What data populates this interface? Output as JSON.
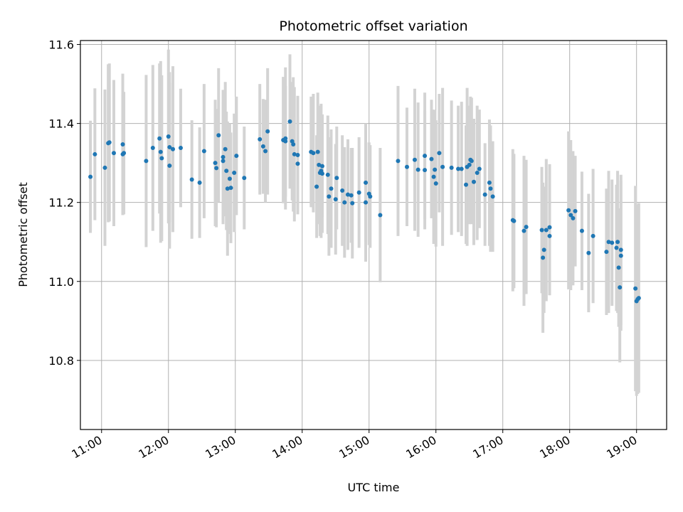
{
  "chart_data": {
    "type": "scatter",
    "title": "Photometric offset variation",
    "xlabel": "UTC time",
    "ylabel": "Photometric offset",
    "xlim": [
      "10:41",
      "19:27"
    ],
    "ylim": [
      10.625,
      11.61
    ],
    "x_ticks": [
      "11:00",
      "12:00",
      "13:00",
      "14:00",
      "15:00",
      "16:00",
      "17:00",
      "18:00",
      "19:00"
    ],
    "y_ticks": [
      10.8,
      11.0,
      11.2,
      11.4,
      11.6
    ],
    "grid": true,
    "colors": {
      "points": "#1f77b4",
      "errorbars": "#d3d3d3",
      "grid": "#b0b0b0"
    },
    "series": [
      {
        "points": [
          {
            "x": "10:50",
            "y": 11.265,
            "err": 0.142
          },
          {
            "x": "10:54",
            "y": 11.322,
            "err": 0.167
          },
          {
            "x": "11:03",
            "y": 11.288,
            "err": 0.198
          },
          {
            "x": "11:06",
            "y": 11.35,
            "err": 0.2
          },
          {
            "x": "11:07",
            "y": 11.352,
            "err": 0.2
          },
          {
            "x": "11:11",
            "y": 11.325,
            "err": 0.185
          },
          {
            "x": "11:19",
            "y": 11.347,
            "err": 0.179
          },
          {
            "x": "11:19",
            "y": 11.322,
            "err": 0.15
          },
          {
            "x": "11:20",
            "y": 11.325,
            "err": 0.155
          },
          {
            "x": "11:40",
            "y": 11.305,
            "err": 0.218
          },
          {
            "x": "11:46",
            "y": 11.338,
            "err": 0.21
          },
          {
            "x": "11:52",
            "y": 11.362,
            "err": 0.19
          },
          {
            "x": "11:53",
            "y": 11.328,
            "err": 0.23
          },
          {
            "x": "11:54",
            "y": 11.312,
            "err": 0.21
          },
          {
            "x": "12:00",
            "y": 11.367,
            "err": 0.22
          },
          {
            "x": "12:01",
            "y": 11.293,
            "err": 0.21
          },
          {
            "x": "12:01",
            "y": 11.34,
            "err": 0.19
          },
          {
            "x": "12:04",
            "y": 11.335,
            "err": 0.21
          },
          {
            "x": "12:11",
            "y": 11.338,
            "err": 0.15
          },
          {
            "x": "12:21",
            "y": 11.258,
            "err": 0.15
          },
          {
            "x": "12:28",
            "y": 11.25,
            "err": 0.14
          },
          {
            "x": "12:32",
            "y": 11.33,
            "err": 0.17
          },
          {
            "x": "12:42",
            "y": 11.3,
            "err": 0.16
          },
          {
            "x": "12:43",
            "y": 11.287,
            "err": 0.15
          },
          {
            "x": "12:45",
            "y": 11.37,
            "err": 0.17
          },
          {
            "x": "12:49",
            "y": 11.315,
            "err": 0.17
          },
          {
            "x": "12:49",
            "y": 11.305,
            "err": 0.15
          },
          {
            "x": "12:51",
            "y": 11.335,
            "err": 0.17
          },
          {
            "x": "12:52",
            "y": 11.28,
            "err": 0.15
          },
          {
            "x": "12:53",
            "y": 11.235,
            "err": 0.17
          },
          {
            "x": "12:55",
            "y": 11.26,
            "err": 0.14
          },
          {
            "x": "12:56",
            "y": 11.237,
            "err": 0.14
          },
          {
            "x": "12:59",
            "y": 11.275,
            "err": 0.15
          },
          {
            "x": "13:01",
            "y": 11.318,
            "err": 0.15
          },
          {
            "x": "13:08",
            "y": 11.262,
            "err": 0.13
          },
          {
            "x": "13:22",
            "y": 11.36,
            "err": 0.14
          },
          {
            "x": "13:25",
            "y": 11.342,
            "err": 0.12
          },
          {
            "x": "13:27",
            "y": 11.33,
            "err": 0.13
          },
          {
            "x": "13:29",
            "y": 11.38,
            "err": 0.16
          },
          {
            "x": "13:43",
            "y": 11.358,
            "err": 0.16
          },
          {
            "x": "13:45",
            "y": 11.362,
            "err": 0.18
          },
          {
            "x": "13:45",
            "y": 11.355,
            "err": 0.14
          },
          {
            "x": "13:49",
            "y": 11.405,
            "err": 0.17
          },
          {
            "x": "13:51",
            "y": 11.355,
            "err": 0.15
          },
          {
            "x": "13:52",
            "y": 11.347,
            "err": 0.17
          },
          {
            "x": "13:53",
            "y": 11.322,
            "err": 0.17
          },
          {
            "x": "13:56",
            "y": 11.298,
            "err": 0.12
          },
          {
            "x": "13:56",
            "y": 11.32,
            "err": 0.15
          },
          {
            "x": "14:08",
            "y": 11.328,
            "err": 0.14
          },
          {
            "x": "14:10",
            "y": 11.325,
            "err": 0.15
          },
          {
            "x": "14:13",
            "y": 11.24,
            "err": 0.13
          },
          {
            "x": "14:14",
            "y": 11.328,
            "err": 0.15
          },
          {
            "x": "14:15",
            "y": 11.295,
            "err": 0.15
          },
          {
            "x": "14:16",
            "y": 11.275,
            "err": 0.16
          },
          {
            "x": "14:17",
            "y": 11.28,
            "err": 0.17
          },
          {
            "x": "14:18",
            "y": 11.292,
            "err": 0.13
          },
          {
            "x": "14:18",
            "y": 11.273,
            "err": 0.15
          },
          {
            "x": "14:23",
            "y": 11.27,
            "err": 0.15
          },
          {
            "x": "14:24",
            "y": 11.215,
            "err": 0.15
          },
          {
            "x": "14:26",
            "y": 11.235,
            "err": 0.15
          },
          {
            "x": "14:30",
            "y": 11.208,
            "err": 0.14
          },
          {
            "x": "14:31",
            "y": 11.262,
            "err": 0.13
          },
          {
            "x": "14:36",
            "y": 11.23,
            "err": 0.14
          },
          {
            "x": "14:38",
            "y": 11.2,
            "err": 0.14
          },
          {
            "x": "14:41",
            "y": 11.22,
            "err": 0.14
          },
          {
            "x": "14:44",
            "y": 11.218,
            "err": 0.12
          },
          {
            "x": "14:45",
            "y": 11.198,
            "err": 0.14
          },
          {
            "x": "14:51",
            "y": 11.225,
            "err": 0.14
          },
          {
            "x": "14:57",
            "y": 11.25,
            "err": 0.15
          },
          {
            "x": "14:57",
            "y": 11.2,
            "err": 0.15
          },
          {
            "x": "15:00",
            "y": 11.222,
            "err": 0.13
          },
          {
            "x": "15:01",
            "y": 11.215,
            "err": 0.13
          },
          {
            "x": "15:10",
            "y": 11.168,
            "err": 0.17
          },
          {
            "x": "15:26",
            "y": 11.305,
            "err": 0.19
          },
          {
            "x": "15:34",
            "y": 11.29,
            "err": 0.15
          },
          {
            "x": "15:41",
            "y": 11.308,
            "err": 0.18
          },
          {
            "x": "15:44",
            "y": 11.283,
            "err": 0.17
          },
          {
            "x": "15:50",
            "y": 11.318,
            "err": 0.16
          },
          {
            "x": "15:50",
            "y": 11.282,
            "err": 0.15
          },
          {
            "x": "15:56",
            "y": 11.31,
            "err": 0.15
          },
          {
            "x": "15:58",
            "y": 11.265,
            "err": 0.17
          },
          {
            "x": "15:59",
            "y": 11.283,
            "err": 0.15
          },
          {
            "x": "16:00",
            "y": 11.248,
            "err": 0.16
          },
          {
            "x": "16:03",
            "y": 11.325,
            "err": 0.15
          },
          {
            "x": "16:06",
            "y": 11.29,
            "err": 0.2
          },
          {
            "x": "16:14",
            "y": 11.288,
            "err": 0.17
          },
          {
            "x": "16:20",
            "y": 11.285,
            "err": 0.16
          },
          {
            "x": "16:23",
            "y": 11.285,
            "err": 0.17
          },
          {
            "x": "16:27",
            "y": 11.245,
            "err": 0.15
          },
          {
            "x": "16:28",
            "y": 11.29,
            "err": 0.2
          },
          {
            "x": "16:30",
            "y": 11.295,
            "err": 0.15
          },
          {
            "x": "16:31",
            "y": 11.308,
            "err": 0.16
          },
          {
            "x": "16:32",
            "y": 11.305,
            "err": 0.16
          },
          {
            "x": "16:34",
            "y": 11.252,
            "err": 0.16
          },
          {
            "x": "16:37",
            "y": 11.275,
            "err": 0.17
          },
          {
            "x": "16:39",
            "y": 11.285,
            "err": 0.15
          },
          {
            "x": "16:44",
            "y": 11.22,
            "err": 0.13
          },
          {
            "x": "16:48",
            "y": 11.25,
            "err": 0.16
          },
          {
            "x": "16:49",
            "y": 11.235,
            "err": 0.16
          },
          {
            "x": "16:51",
            "y": 11.215,
            "err": 0.14
          },
          {
            "x": "17:09",
            "y": 11.155,
            "err": 0.18
          },
          {
            "x": "17:10",
            "y": 11.153,
            "err": 0.17
          },
          {
            "x": "17:19",
            "y": 11.128,
            "err": 0.19
          },
          {
            "x": "17:21",
            "y": 11.138,
            "err": 0.17
          },
          {
            "x": "17:35",
            "y": 11.13,
            "err": 0.16
          },
          {
            "x": "17:36",
            "y": 11.06,
            "err": 0.19
          },
          {
            "x": "17:37",
            "y": 11.08,
            "err": 0.16
          },
          {
            "x": "17:39",
            "y": 11.13,
            "err": 0.18
          },
          {
            "x": "17:42",
            "y": 11.137,
            "err": 0.16
          },
          {
            "x": "17:42",
            "y": 11.115,
            "err": 0.15
          },
          {
            "x": "17:59",
            "y": 11.18,
            "err": 0.2
          },
          {
            "x": "18:01",
            "y": 11.168,
            "err": 0.19
          },
          {
            "x": "18:03",
            "y": 11.16,
            "err": 0.17
          },
          {
            "x": "18:05",
            "y": 11.178,
            "err": 0.14
          },
          {
            "x": "18:11",
            "y": 11.128,
            "err": 0.15
          },
          {
            "x": "18:17",
            "y": 11.072,
            "err": 0.15
          },
          {
            "x": "18:21",
            "y": 11.115,
            "err": 0.17
          },
          {
            "x": "18:33",
            "y": 11.075,
            "err": 0.16
          },
          {
            "x": "18:35",
            "y": 11.1,
            "err": 0.18
          },
          {
            "x": "18:38",
            "y": 11.098,
            "err": 0.16
          },
          {
            "x": "18:42",
            "y": 11.085,
            "err": 0.16
          },
          {
            "x": "18:43",
            "y": 11.1,
            "err": 0.18
          },
          {
            "x": "18:44",
            "y": 11.035,
            "err": 0.15
          },
          {
            "x": "18:46",
            "y": 11.08,
            "err": 0.19
          },
          {
            "x": "18:46",
            "y": 11.065,
            "err": 0.19
          },
          {
            "x": "18:45",
            "y": 10.985,
            "err": 0.19
          },
          {
            "x": "18:59",
            "y": 10.982,
            "err": 0.26
          },
          {
            "x": "19:00",
            "y": 10.95,
            "err": 0.24
          },
          {
            "x": "19:01",
            "y": 10.955,
            "err": 0.24
          },
          {
            "x": "19:02",
            "y": 10.958,
            "err": 0.24
          }
        ]
      }
    ]
  }
}
